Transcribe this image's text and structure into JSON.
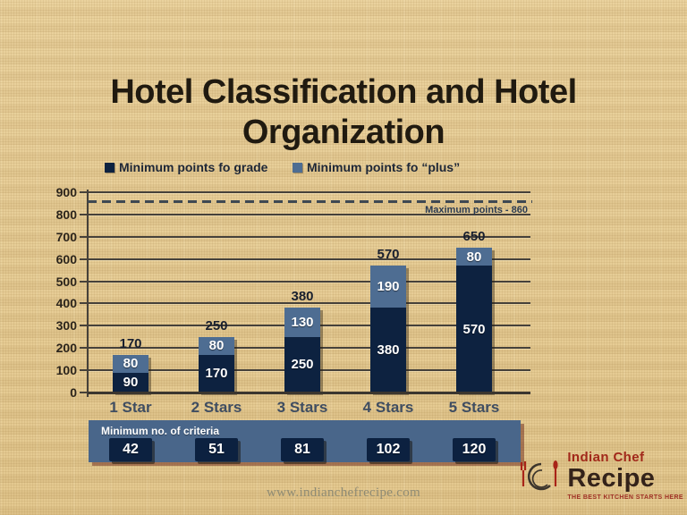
{
  "title": {
    "lines": [
      "Hotel Classification and Hotel",
      "Organization"
    ]
  },
  "chart_data": {
    "type": "bar",
    "stacked": true,
    "categories": [
      "1 Star",
      "2 Stars",
      "3 Stars",
      "4 Stars",
      "5 Stars"
    ],
    "series": [
      {
        "name": "Minimum points fo grade",
        "color": "#0d2240",
        "values": [
          90,
          170,
          250,
          380,
          570
        ]
      },
      {
        "name": "Minimum points fo “plus”",
        "color": "#4e6d92",
        "values": [
          80,
          80,
          130,
          190,
          80
        ]
      }
    ],
    "totals": [
      170,
      250,
      380,
      570,
      650
    ],
    "ylim": [
      0,
      900
    ],
    "yticks": [
      0,
      100,
      200,
      300,
      400,
      500,
      600,
      700,
      800,
      900
    ],
    "grid": true,
    "legend_position": "top",
    "annotation_line": {
      "value": 860,
      "label": "Maximum points - 860",
      "style": "dashed"
    }
  },
  "criteria": {
    "title": "Minimum no. of criteria",
    "values": [
      42,
      51,
      81,
      102,
      120
    ],
    "panel_color": "#49668a",
    "box_color": "#0c2140"
  },
  "footer": {
    "url": "www.indianchefrecipe.com"
  },
  "logo": {
    "name_top": "Indian Chef",
    "name_bottom": "Recipe",
    "tagline": "THE BEST KITCHEN STARTS HERE",
    "accent_color": "#a82418"
  },
  "colors": {
    "background": "#e5c992",
    "grade_bar": "#0d2240",
    "plus_bar": "#4e6d92",
    "gridline": "#46413a"
  }
}
